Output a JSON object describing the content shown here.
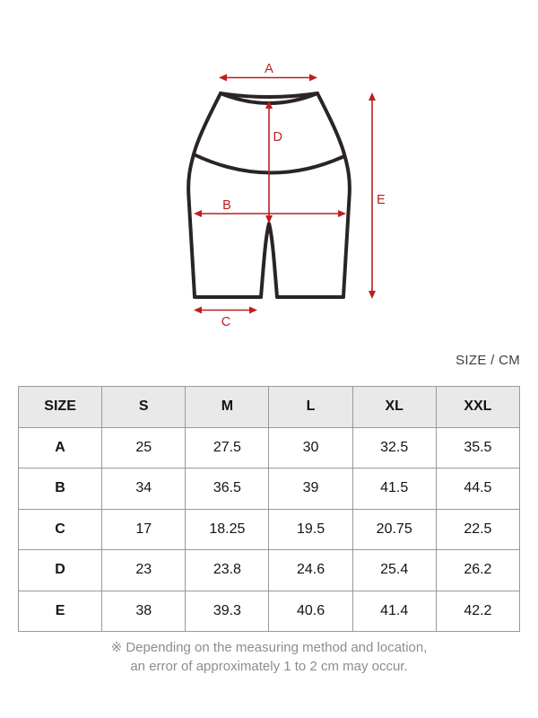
{
  "diagram": {
    "labels": {
      "a": "A",
      "b": "B",
      "c": "C",
      "d": "D",
      "e": "E"
    },
    "arrow_color": "#be1e1e",
    "outline_color": "#2a2424"
  },
  "table": {
    "unit_label": "SIZE / CM",
    "columns": [
      "SIZE",
      "S",
      "M",
      "L",
      "XL",
      "XXL"
    ],
    "rows": [
      {
        "label": "A",
        "values": [
          "25",
          "27.5",
          "30",
          "32.5",
          "35.5"
        ]
      },
      {
        "label": "B",
        "values": [
          "34",
          "36.5",
          "39",
          "41.5",
          "44.5"
        ]
      },
      {
        "label": "C",
        "values": [
          "17",
          "18.25",
          "19.5",
          "20.75",
          "22.5"
        ]
      },
      {
        "label": "D",
        "values": [
          "23",
          "23.8",
          "24.6",
          "25.4",
          "26.2"
        ]
      },
      {
        "label": "E",
        "values": [
          "38",
          "39.3",
          "40.6",
          "41.4",
          "42.2"
        ]
      }
    ]
  },
  "footnote": {
    "line1": "※ Depending on the measuring method and location,",
    "line2": "an error of approximately 1 to 2 cm may occur."
  }
}
